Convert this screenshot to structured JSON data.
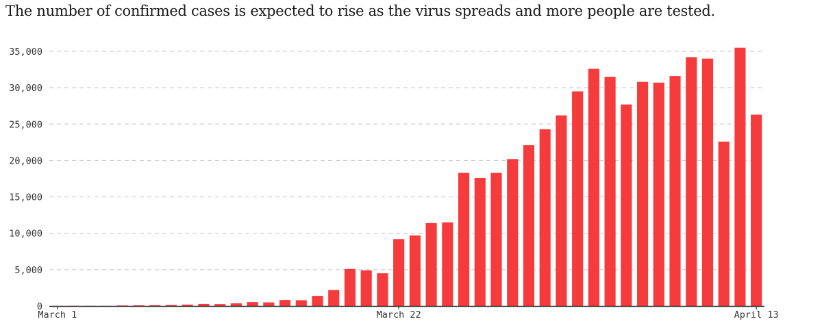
{
  "title": "The number of confirmed cases is expected to rise as the virus spreads and more people are tested.",
  "colors": {
    "bar": "#f53b3b",
    "grid": "#cccccc",
    "axis": "#333333",
    "text": "#333333"
  },
  "chart_data": {
    "type": "bar",
    "title": "The number of confirmed cases is expected to rise as the virus spreads and more people are tested.",
    "xlabel": "",
    "ylabel": "",
    "ylim": [
      0,
      35000
    ],
    "yticks": [
      0,
      5000,
      10000,
      15000,
      20000,
      25000,
      30000,
      35000
    ],
    "ytick_labels": [
      "0",
      "5,000",
      "10,000",
      "15,000",
      "20,000",
      "25,000",
      "30,000",
      "35,000"
    ],
    "grid": true,
    "x_tick_labels": [
      {
        "category": "2020-03-01",
        "label": "March 1"
      },
      {
        "category": "2020-03-22",
        "label": "March 22"
      },
      {
        "category": "2020-04-13",
        "label": "April 13"
      }
    ],
    "categories": [
      "2020-03-01",
      "2020-03-02",
      "2020-03-03",
      "2020-03-04",
      "2020-03-05",
      "2020-03-06",
      "2020-03-07",
      "2020-03-08",
      "2020-03-09",
      "2020-03-10",
      "2020-03-11",
      "2020-03-12",
      "2020-03-13",
      "2020-03-14",
      "2020-03-15",
      "2020-03-16",
      "2020-03-17",
      "2020-03-18",
      "2020-03-19",
      "2020-03-20",
      "2020-03-21",
      "2020-03-22",
      "2020-03-23",
      "2020-03-24",
      "2020-03-25",
      "2020-03-26",
      "2020-03-27",
      "2020-03-28",
      "2020-03-29",
      "2020-03-30",
      "2020-03-31",
      "2020-04-01",
      "2020-04-02",
      "2020-04-03",
      "2020-04-04",
      "2020-04-05",
      "2020-04-06",
      "2020-04-07",
      "2020-04-08",
      "2020-04-09",
      "2020-04-10",
      "2020-04-11",
      "2020-04-12",
      "2020-04-13"
    ],
    "values": [
      20,
      30,
      25,
      20,
      80,
      100,
      120,
      150,
      200,
      290,
      270,
      370,
      550,
      500,
      830,
      800,
      1400,
      2200,
      5100,
      4900,
      4500,
      9200,
      9700,
      11400,
      11500,
      18300,
      17600,
      18300,
      20200,
      22100,
      24300,
      26200,
      29500,
      32600,
      31500,
      27700,
      30800,
      30700,
      31600,
      34200,
      34000,
      22600,
      35500,
      26300
    ]
  }
}
